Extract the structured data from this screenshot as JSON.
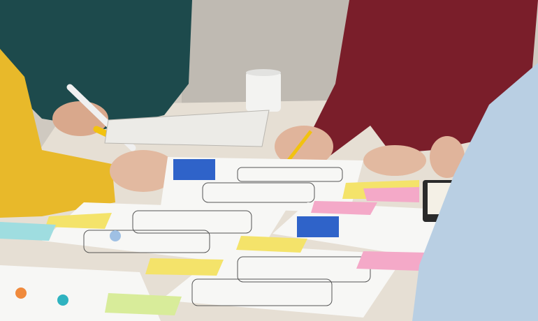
{
  "scene": {
    "colors": {
      "background": "#cfc9c0",
      "table": "#e4ddd2",
      "paper": "#f7f7f5",
      "teal_sweater": "#1d4a4c",
      "yellow_jacket": "#e8b92a",
      "maroon_sweater": "#7a1e2a",
      "blue_shirt": "#b9cfe3",
      "skin": "#e2b9a0",
      "sticky_yellow": "#f4e36a",
      "sticky_pink": "#f4a9c8",
      "sticky_blue": "#9fdde0",
      "accent_blue": "#2f63c9"
    },
    "objects": [
      "coffee-mug",
      "notebook",
      "pencil",
      "marker",
      "wireframe-sheets",
      "sticky-notes",
      "planner"
    ]
  }
}
